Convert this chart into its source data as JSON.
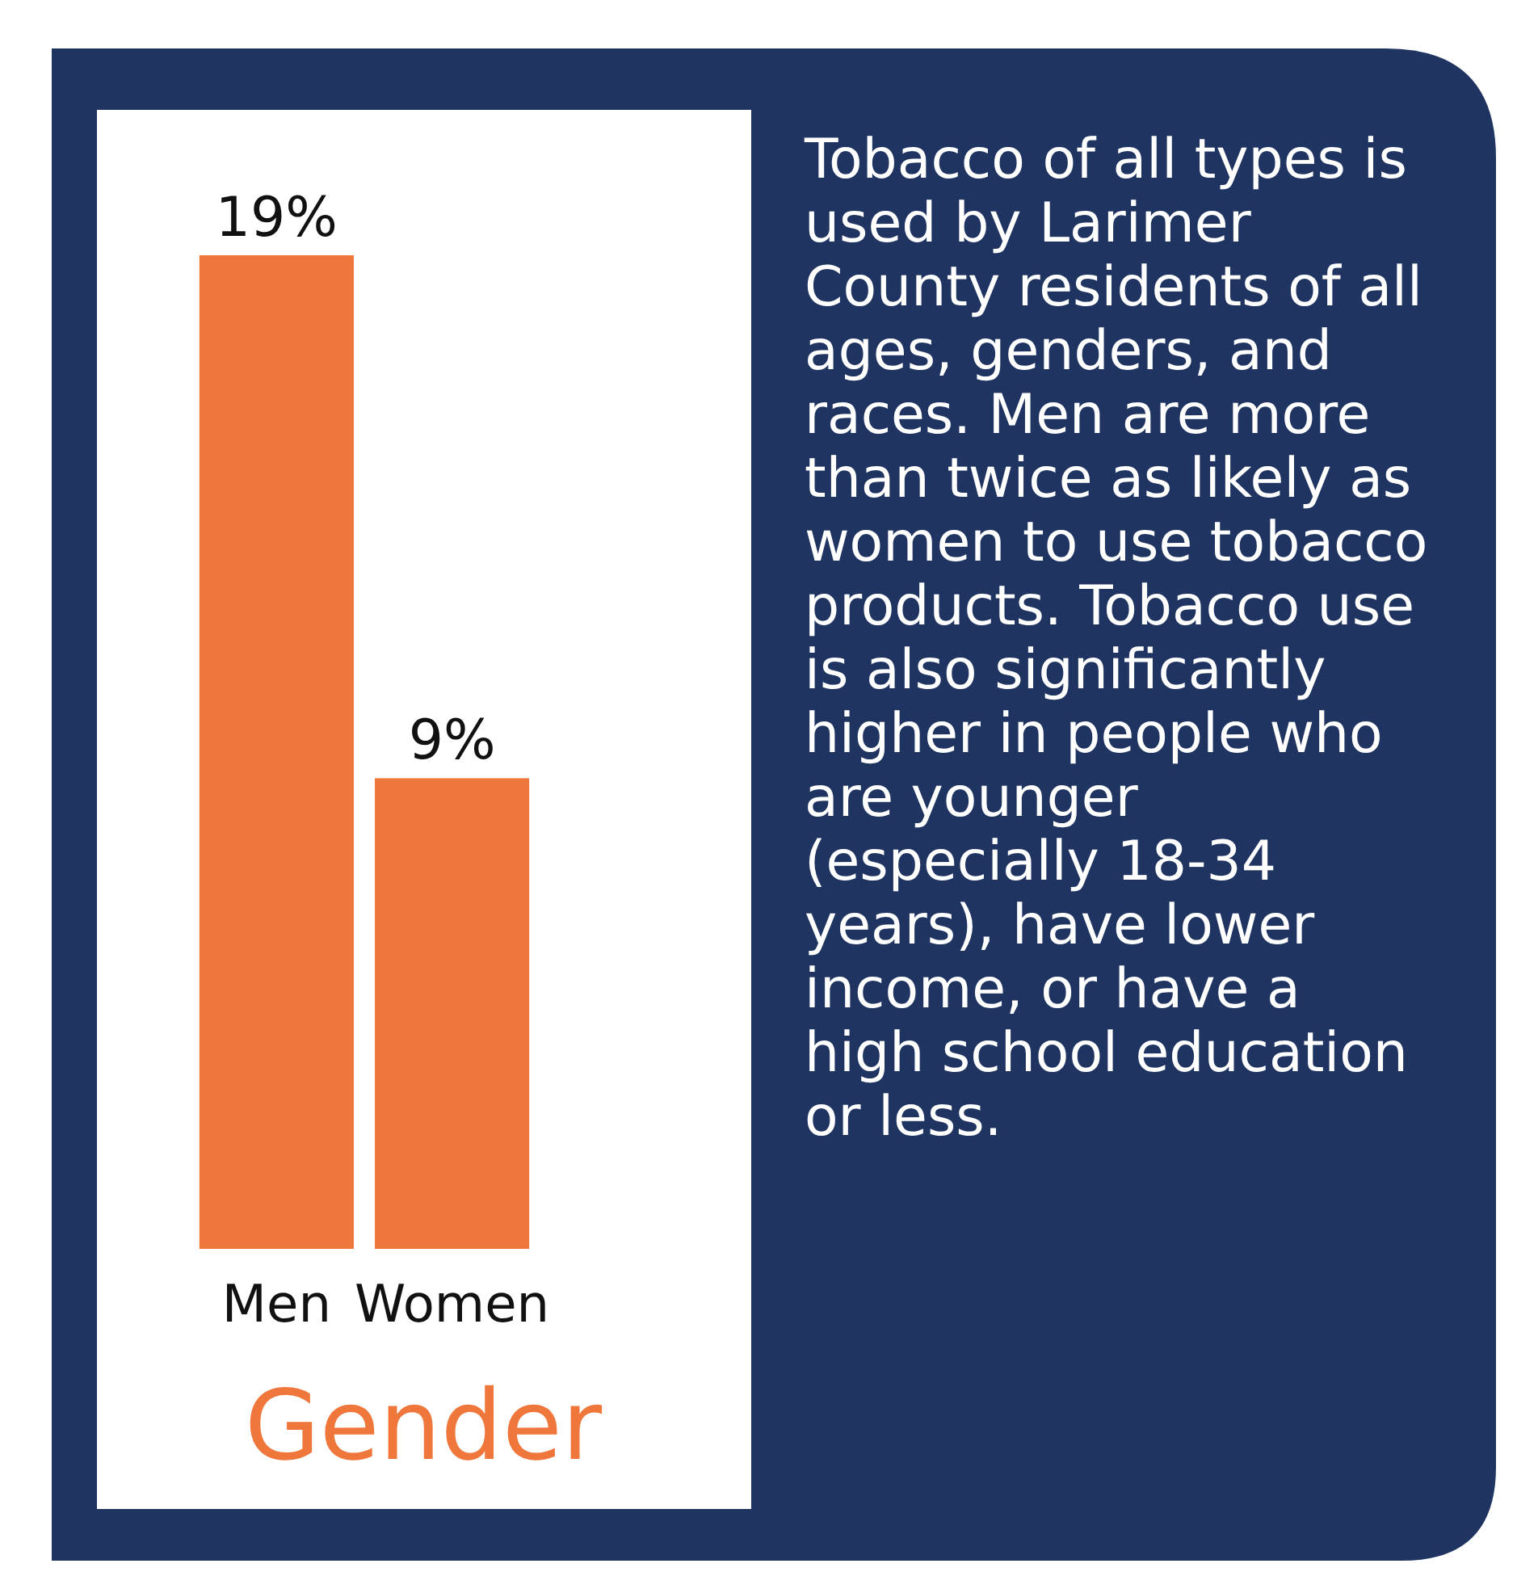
{
  "chart_data": {
    "type": "bar",
    "categories": [
      "Men",
      "Women"
    ],
    "values": [
      19,
      9
    ],
    "value_labels": [
      "19%",
      "9%"
    ],
    "color": "#f0773b",
    "xlabel": "Gender",
    "annotations": [
      "Tobacco of all types is used by Larimer County residents of all ages, genders, and races. Men are more than twice as likely as women to use tobacco products. Tobacco use is also significantly higher in people who are younger (especially 18-34 years), have lower income, or have a high school education or less."
    ]
  }
}
